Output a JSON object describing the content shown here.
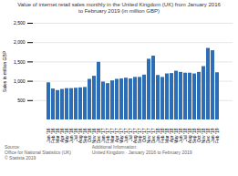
{
  "chart_data": {
    "type": "bar",
    "title": "Value of internet retail sales monthly in the United Kingdom (UK) from January 2016\nto February 2019 (in million GBP)",
    "ylabel": "Sales in million GBP",
    "categories": [
      "Jan '16",
      "Feb '16",
      "Mar '16",
      "Apr '16",
      "May '16",
      "Jun '16",
      "Jul '16",
      "Aug '16",
      "Sep '16",
      "Oct '16",
      "Nov '16",
      "Dec '16",
      "Jan '17",
      "Feb '17",
      "Mar '17",
      "Apr '17",
      "May '17",
      "Jun '17",
      "Jul '17",
      "Aug '17",
      "Sep '17",
      "Oct '17",
      "Nov '17",
      "Dec '17",
      "Jan '18",
      "Feb '18",
      "Mar '18",
      "Apr '18",
      "May '18",
      "Jun '18",
      "Jul '18",
      "Aug '18",
      "Sep '18",
      "Oct '18",
      "Nov '18",
      "Dec '18",
      "Jan '19",
      "Feb '19"
    ],
    "values": [
      960,
      800,
      760,
      790,
      810,
      810,
      820,
      830,
      840,
      1050,
      1130,
      1490,
      980,
      940,
      1010,
      1050,
      1060,
      1080,
      1060,
      1100,
      1100,
      1160,
      1570,
      1650,
      1150,
      1100,
      1190,
      1200,
      1260,
      1230,
      1210,
      1210,
      1190,
      1230,
      1380,
      1850,
      1790,
      1220
    ],
    "color": "#2d6db5",
    "ylim": [
      0,
      2500
    ],
    "yticks": [
      500,
      {
        "value": 1000,
        "label": "1,000"
      },
      {
        "value": 1500,
        "label": "1,500"
      },
      {
        "value": 2000,
        "label": "2,000"
      },
      {
        "value": 2500,
        "label": "2,500"
      }
    ],
    "grid": true,
    "annotations": [
      "Source:\nOffice for National Statistics (UK)\n© Statista 2019",
      "Additional Information:\nUnited Kingdom · January 2016 to February 2019"
    ]
  }
}
